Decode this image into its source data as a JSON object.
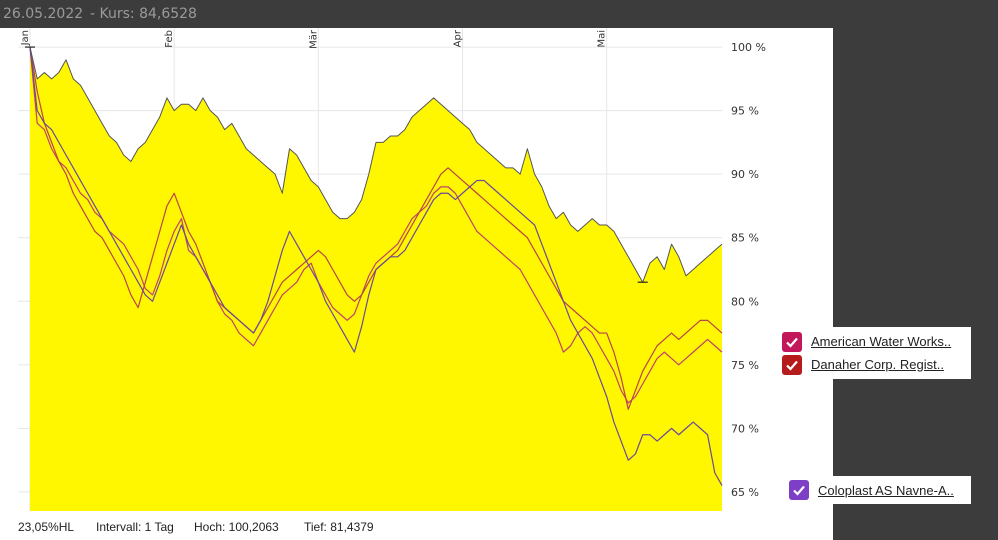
{
  "header": {
    "date": "26.05.2022",
    "kurs": "- Kurs: 84,6528"
  },
  "footer": {
    "range": "23,05%HL",
    "interval": "Intervall: 1 Tag",
    "high": "Hoch: 100,2063",
    "low": "Tief: 81,4379"
  },
  "legend": [
    {
      "label": "American Water Works..",
      "color": "#c2185b",
      "checked": true
    },
    {
      "label": "Danaher Corp. Regist..",
      "color": "#b71c1c",
      "checked": true
    },
    {
      "label": "Coloplast AS Navne-A..",
      "color": "#7e3fc7",
      "checked": true
    }
  ],
  "colors": {
    "main_fill": "#fff700",
    "main_line": "#555555",
    "american_water": "#c0436a",
    "danaher": "#b8444a",
    "coloplast": "#6a4a9a"
  },
  "chart_data": {
    "type": "area",
    "title": "",
    "xlabel": "",
    "ylabel": "",
    "ylim": [
      63.5,
      101.5
    ],
    "y_ticks": [
      100,
      95,
      90,
      85,
      80,
      75,
      70,
      65
    ],
    "y_tick_labels": [
      "100 %",
      "95 %",
      "90 %",
      "85 %",
      "80 %",
      "75 %",
      "70 %",
      "65 %"
    ],
    "month_labels": [
      {
        "label": "Jan",
        "index": 0
      },
      {
        "label": "Feb",
        "index": 20
      },
      {
        "label": "Mär",
        "index": 40
      },
      {
        "label": "Apr",
        "index": 60
      },
      {
        "label": "Mai",
        "index": 80
      }
    ],
    "grid": true,
    "series": [
      {
        "key": "main",
        "values": [
          100,
          97.5,
          98,
          97.5,
          98,
          99,
          97.5,
          97,
          96,
          95,
          94,
          93,
          92.5,
          91.5,
          91,
          92,
          92.5,
          93.5,
          94.5,
          96,
          95,
          95.5,
          95.5,
          95,
          96,
          95,
          94.5,
          93.5,
          94,
          93,
          92,
          91.5,
          91,
          90.5,
          90,
          88.5,
          92,
          91.5,
          90.5,
          89.5,
          89,
          88,
          87,
          86.5,
          86.5,
          87,
          88,
          90,
          92.5,
          92.5,
          93,
          93,
          93.5,
          94.5,
          95,
          95.5,
          96,
          95.5,
          95,
          94.5,
          94,
          93.5,
          92.5,
          92,
          91.5,
          91,
          90.5,
          90.5,
          90,
          92,
          90,
          89,
          87.5,
          86.5,
          87,
          86,
          85.5,
          86,
          86.5,
          86,
          86,
          85.5,
          84.5,
          83.5,
          82.5,
          81.5,
          83,
          83.5,
          82.5,
          84.5,
          83.5,
          82,
          82.5,
          83,
          83.5,
          84,
          84.5
        ]
      },
      {
        "key": "american_water",
        "name": "American Water Works..",
        "values": [
          100,
          94,
          93.5,
          92,
          91,
          90.5,
          89.5,
          88.5,
          88,
          87,
          86.5,
          85.5,
          85,
          84.5,
          83.5,
          82.5,
          81,
          80.5,
          82,
          84,
          85.5,
          86.5,
          84,
          83.5,
          82.5,
          81.5,
          80,
          79,
          78.5,
          77.5,
          77,
          76.5,
          77.5,
          78.5,
          79.5,
          80.5,
          81,
          81.5,
          82.5,
          83,
          81.5,
          80.5,
          79.5,
          79,
          78.5,
          79,
          80.5,
          82,
          83,
          83.5,
          84,
          84.5,
          85.5,
          86.5,
          87,
          87.5,
          88.5,
          89,
          89,
          88.5,
          87.5,
          86.5,
          85.5,
          85,
          84.5,
          84,
          83.5,
          83,
          82.5,
          81.5,
          80.5,
          79.5,
          78.5,
          77.5,
          76,
          76.5,
          77.5,
          78,
          77.5,
          76.5,
          75.5,
          74.5,
          73,
          72,
          72.5,
          73.5,
          74.5,
          75.5,
          76,
          75.5,
          75,
          75.5,
          76,
          76.5,
          77,
          76.5,
          76
        ]
      },
      {
        "key": "danaher",
        "name": "Danaher Corp. Regist..",
        "values": [
          100,
          96.5,
          94,
          92.5,
          91,
          90,
          88.5,
          87.5,
          86.5,
          85.5,
          85,
          84,
          83,
          82,
          80.5,
          79.5,
          81.5,
          83.5,
          85.5,
          87.5,
          88.5,
          87,
          85.5,
          84.5,
          83,
          81.5,
          80,
          79.5,
          79,
          78.5,
          78,
          77.5,
          78.5,
          79.5,
          80.5,
          81.5,
          82,
          82.5,
          83,
          83.5,
          84,
          83.5,
          82.5,
          81.5,
          80.5,
          80,
          80.5,
          81.5,
          82.5,
          83,
          83.5,
          84,
          85,
          86,
          87,
          88,
          89,
          90,
          90.5,
          90,
          89.5,
          89,
          88.5,
          88,
          87.5,
          87,
          86.5,
          86,
          85.5,
          85,
          84,
          83,
          82,
          81,
          80,
          79.5,
          79,
          78.5,
          78,
          77.5,
          77.5,
          76,
          74,
          71.5,
          73,
          74.5,
          75.5,
          76.5,
          77,
          77.5,
          77,
          77.5,
          78,
          78.5,
          78.5,
          78,
          77.5
        ]
      },
      {
        "key": "coloplast",
        "name": "Coloplast AS Navne-A..",
        "values": [
          100,
          95,
          94,
          93.5,
          92.5,
          91.5,
          90.5,
          89.5,
          88.5,
          87.5,
          86.5,
          85.5,
          84.5,
          83.5,
          82.5,
          81.5,
          80.5,
          80,
          81.5,
          83,
          84.5,
          86,
          84.5,
          83.5,
          82.5,
          81.5,
          80.5,
          79.5,
          79,
          78.5,
          78,
          77.5,
          78.5,
          80,
          82,
          84,
          85.5,
          84.5,
          83.5,
          82.5,
          81.5,
          80,
          79,
          78,
          77,
          76,
          78,
          80.5,
          82.5,
          83,
          83.5,
          83.5,
          84,
          85,
          86,
          87,
          88,
          88.5,
          88.5,
          88,
          88.5,
          89,
          89.5,
          89.5,
          89,
          88.5,
          88,
          87.5,
          87,
          86.5,
          86,
          84.5,
          83,
          81.5,
          80,
          78.5,
          77.5,
          76.5,
          75.5,
          74,
          72.5,
          70.5,
          69,
          67.5,
          68,
          69.5,
          69.5,
          69,
          69.5,
          70,
          69.5,
          70,
          70.5,
          70,
          69.5,
          66.5,
          65.5
        ]
      }
    ]
  }
}
